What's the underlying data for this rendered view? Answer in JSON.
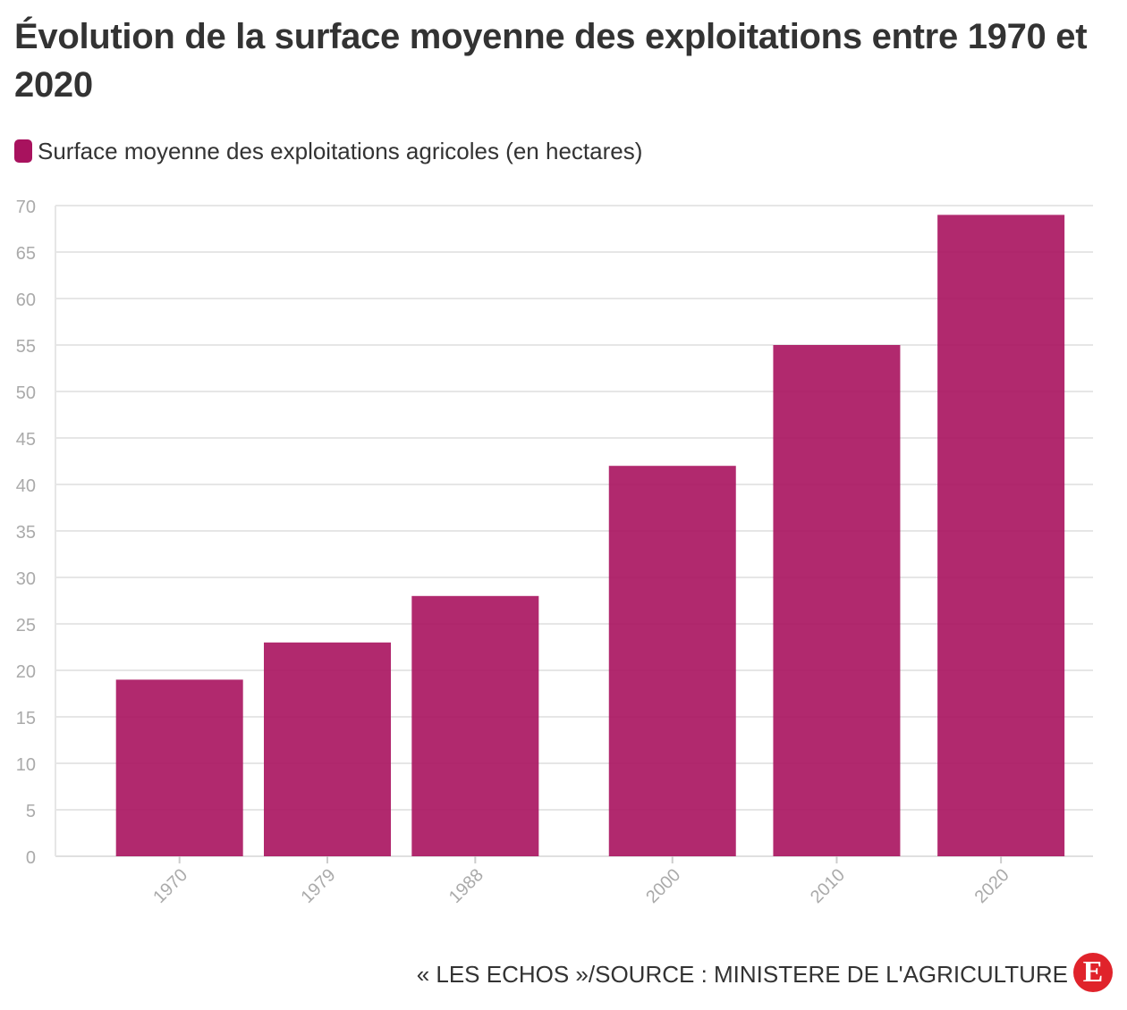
{
  "title": "Évolution de la surface moyenne des exploitations entre 1970 et 2020",
  "source": "« LES ECHOS »/SOURCE : MINISTERE DE L'AGRICULTURE",
  "logo": {
    "icon": "les-echos-logo",
    "letter": "E",
    "color": "#e0232b"
  },
  "colors": {
    "bar": "#a8125e",
    "grid": "#e6e6e6",
    "tick_label": "#aaaaaa"
  },
  "chart_data": {
    "type": "bar",
    "title": "Évolution de la surface moyenne des exploitations entre 1970 et 2020",
    "x": [
      1970,
      1979,
      1988,
      2000,
      2010,
      2020
    ],
    "categories": [
      "1970",
      "1979",
      "1988",
      "2000",
      "2010",
      "2020"
    ],
    "series": [
      {
        "name": "Surface moyenne des exploitations agricoles (en hectares)",
        "values": [
          19,
          23,
          28,
          42,
          55,
          69
        ]
      }
    ],
    "xlabel": "",
    "ylabel": "",
    "ylim": [
      0,
      70
    ],
    "yticks": [
      0,
      5,
      10,
      15,
      20,
      25,
      30,
      35,
      40,
      45,
      50,
      55,
      60,
      65,
      70
    ],
    "xtick_rotation": -45,
    "grid": true,
    "legend_position": "top-left"
  }
}
